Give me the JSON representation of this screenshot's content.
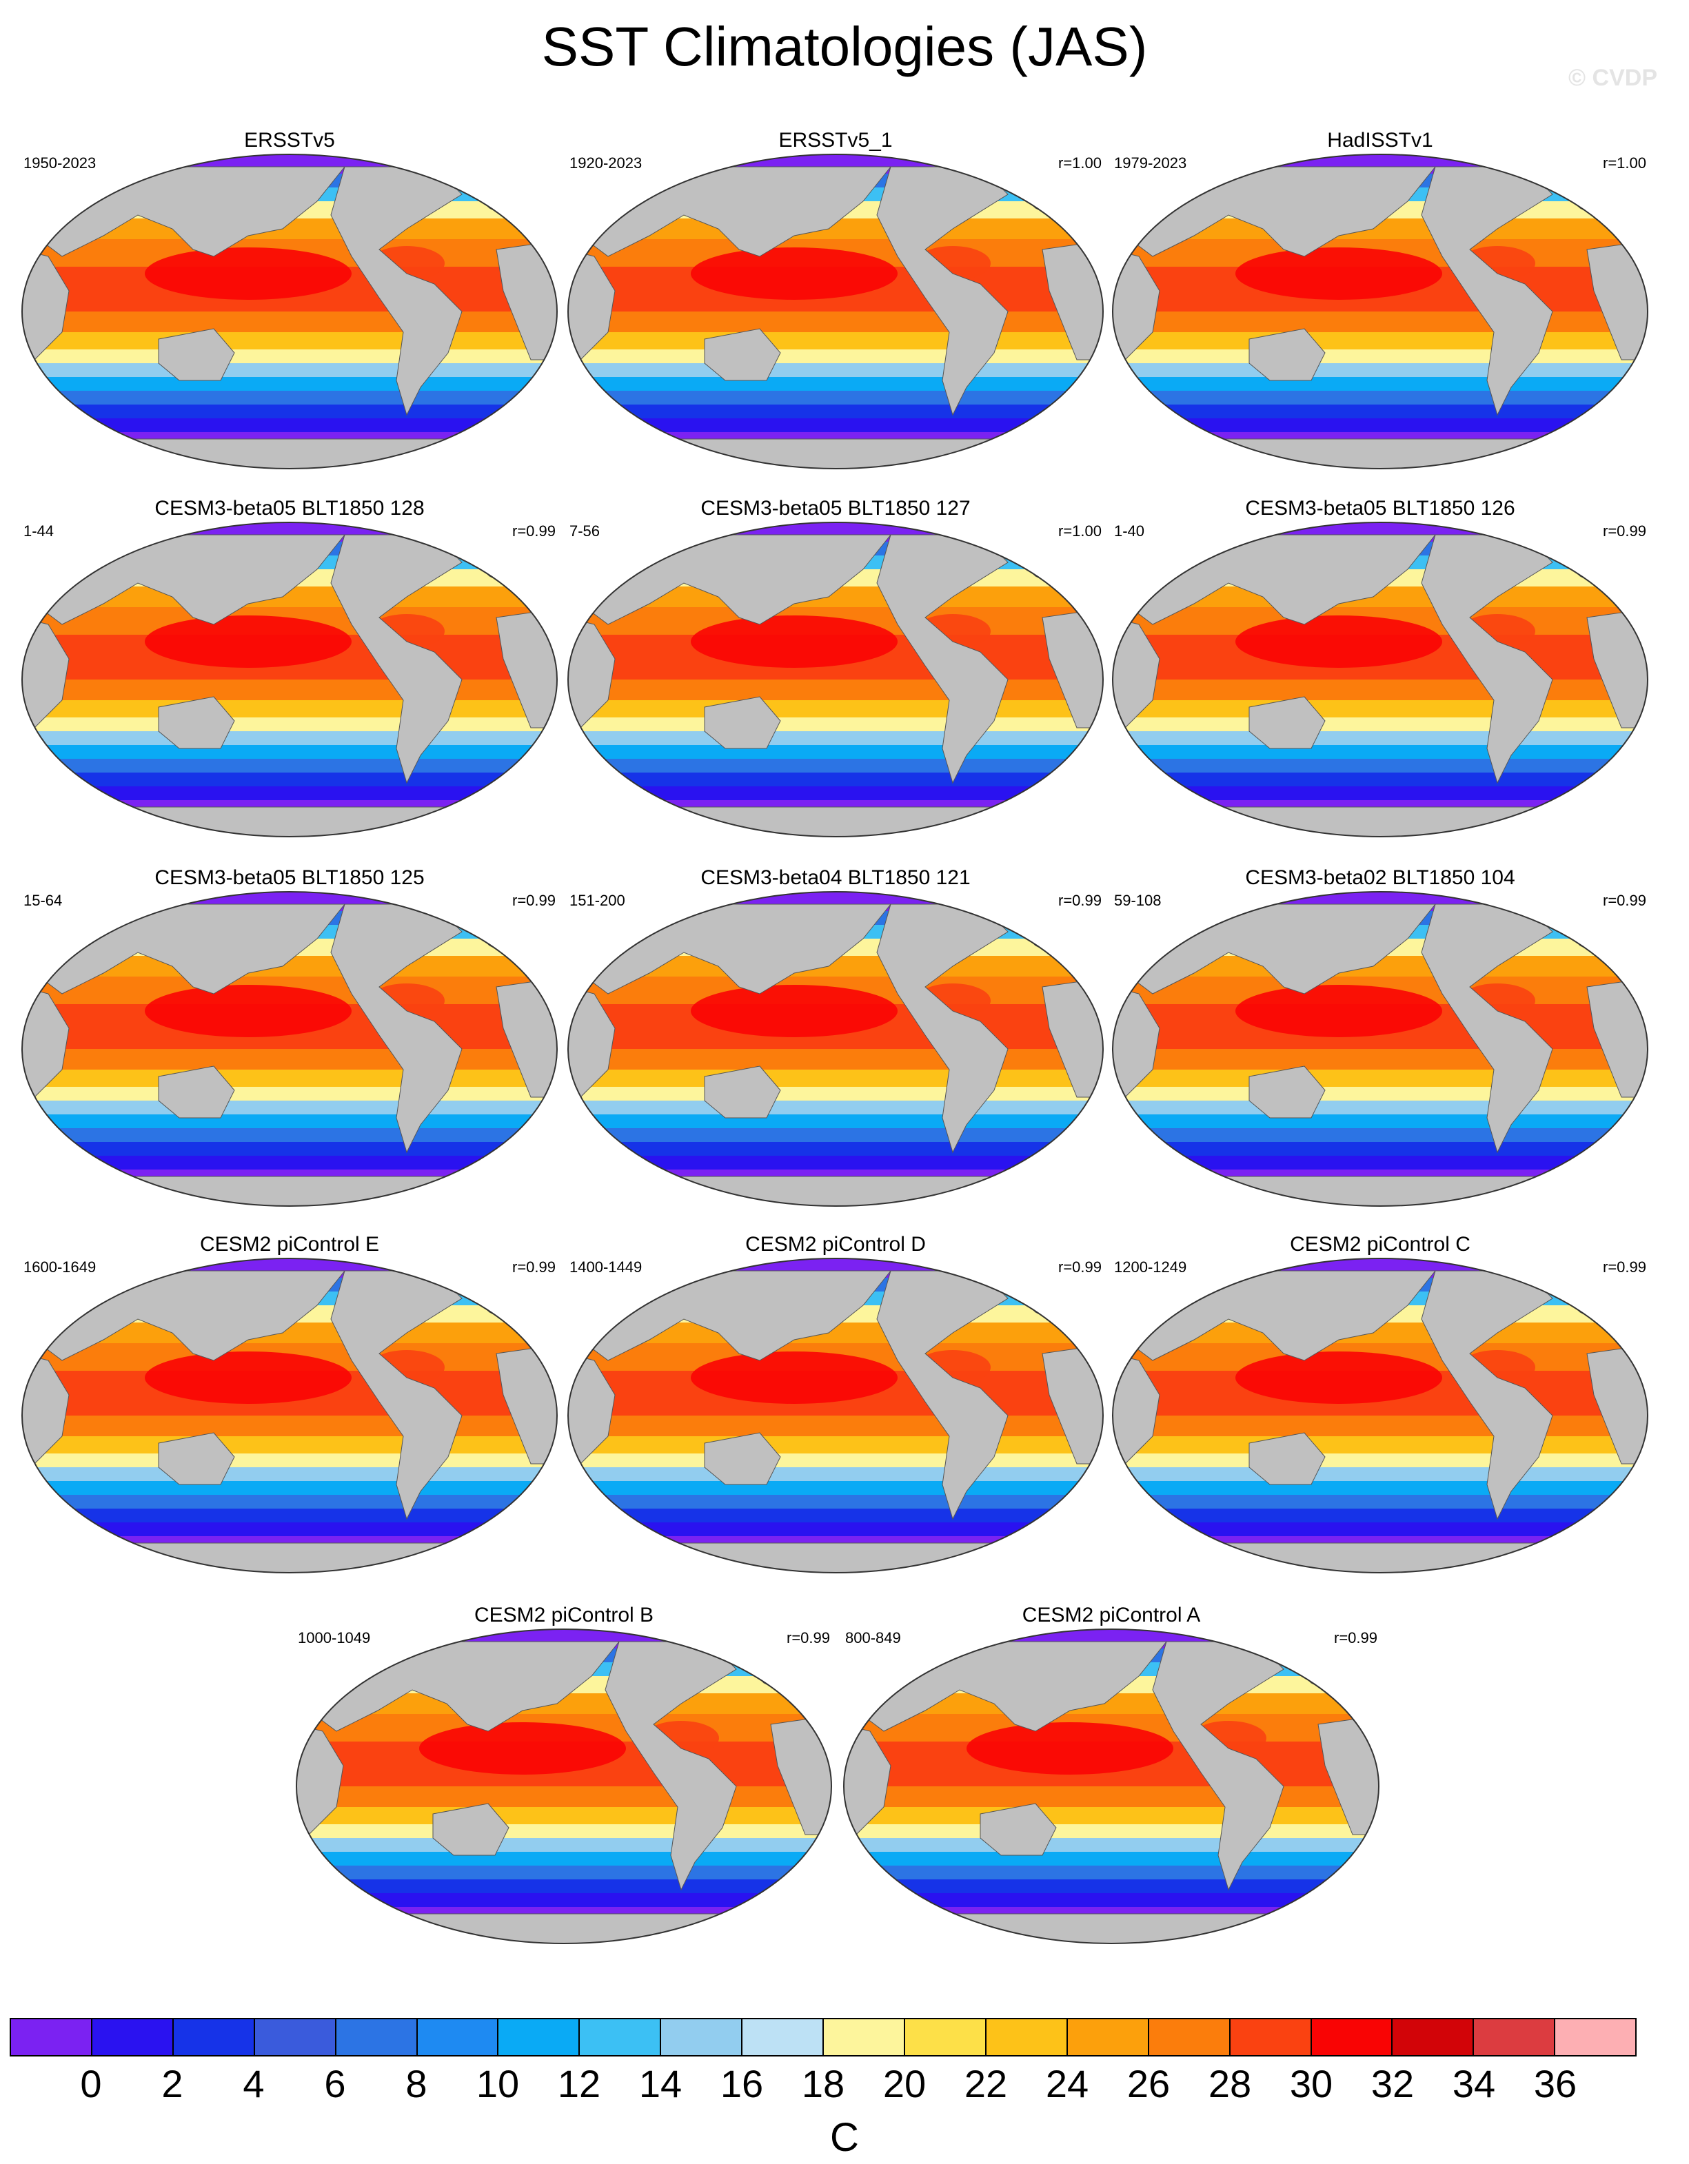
{
  "figure": {
    "title": "SST Climatologies (JAS)",
    "watermark": "© CVDP"
  },
  "panels": [
    {
      "title": "ERSSTv5",
      "years": "1950-2023",
      "corr": ""
    },
    {
      "title": "ERSSTv5_1",
      "years": "1920-2023",
      "corr": "r=1.00"
    },
    {
      "title": "HadISSTv1",
      "years": "1979-2023",
      "corr": "r=1.00"
    },
    {
      "title": "CESM3-beta05 BLT1850 128",
      "years": "1-44",
      "corr": "r=0.99"
    },
    {
      "title": "CESM3-beta05 BLT1850 127",
      "years": "7-56",
      "corr": "r=1.00"
    },
    {
      "title": "CESM3-beta05 BLT1850 126",
      "years": "1-40",
      "corr": "r=0.99"
    },
    {
      "title": "CESM3-beta05 BLT1850 125",
      "years": "15-64",
      "corr": "r=0.99"
    },
    {
      "title": "CESM3-beta04 BLT1850 121",
      "years": "151-200",
      "corr": "r=0.99"
    },
    {
      "title": "CESM3-beta02 BLT1850 104",
      "years": "59-108",
      "corr": "r=0.99"
    },
    {
      "title": "CESM2 piControl E",
      "years": "1600-1649",
      "corr": "r=0.99"
    },
    {
      "title": "CESM2 piControl D",
      "years": "1400-1449",
      "corr": "r=0.99"
    },
    {
      "title": "CESM2 piControl C",
      "years": "1200-1249",
      "corr": "r=0.99"
    },
    {
      "title": "CESM2 piControl B",
      "years": "1000-1049",
      "corr": "r=0.99"
    },
    {
      "title": "CESM2 piControl A",
      "years": "800-849",
      "corr": "r=0.99"
    }
  ],
  "colorbar": {
    "unit": "C",
    "labels": [
      "0",
      "2",
      "4",
      "6",
      "8",
      "10",
      "12",
      "14",
      "16",
      "18",
      "20",
      "22",
      "24",
      "26",
      "28",
      "30",
      "32",
      "34",
      "36"
    ],
    "colors": [
      "#7b22f2",
      "#2a12f0",
      "#1633e8",
      "#3a5bdc",
      "#2c74e4",
      "#1e8af2",
      "#0aaaf5",
      "#3cc0f4",
      "#92cdef",
      "#bde1f5",
      "#fdf59c",
      "#fde048",
      "#fdc218",
      "#fca00c",
      "#fb7d0c",
      "#fa4211",
      "#f90404",
      "#d20408",
      "#dc3c40",
      "#fdafb3"
    ],
    "land_color": "#c0c0c0"
  }
}
